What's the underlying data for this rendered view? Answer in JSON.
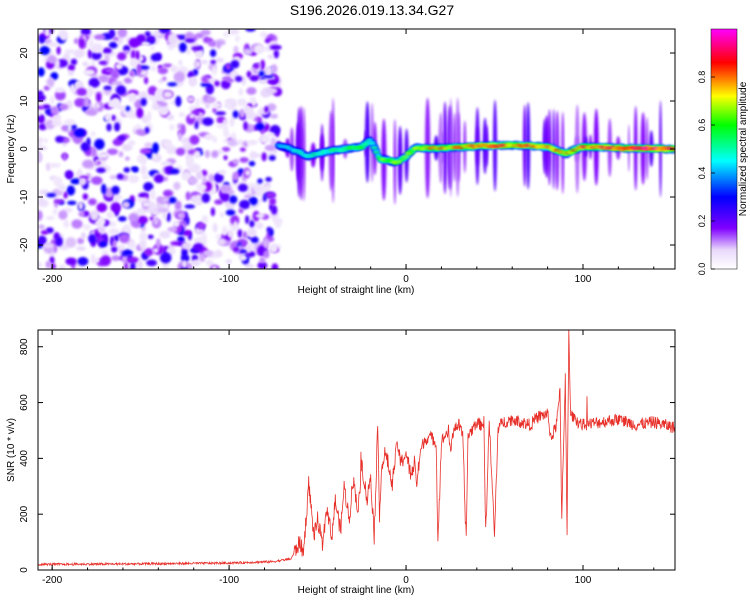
{
  "title": "S196.2026.019.13.34.G27",
  "chart_data": [
    {
      "type": "heatmap",
      "title": "",
      "xlabel": "Height of straight line (km)",
      "ylabel": "Frequency (Hz)",
      "xlim": [
        -208,
        152
      ],
      "ylim": [
        -25,
        25
      ],
      "xticks": [
        -200,
        -100,
        0,
        100
      ],
      "yticks": [
        -20,
        -10,
        0,
        10,
        20
      ],
      "colorbar": {
        "label": "Normalized spectral amplitude",
        "range": [
          0,
          1
        ],
        "ticks": [
          0.0,
          0.2,
          0.4,
          0.6,
          0.8
        ],
        "colors": [
          "#ffffff",
          "#e8d8fb",
          "#8000ff",
          "#0000ff",
          "#00ffff",
          "#00ff00",
          "#ffff00",
          "#ff0000",
          "#ff00ff"
        ]
      },
      "noise_region": {
        "x_range": [
          -208,
          -72
        ],
        "freq_range": [
          -25,
          25
        ],
        "amplitude": [
          0.05,
          0.3
        ]
      },
      "ridge": [
        {
          "x": -72,
          "freq": 0.8,
          "amp": 0.3
        },
        {
          "x": -65,
          "freq": 0.0,
          "amp": 0.35
        },
        {
          "x": -55,
          "freq": -1.5,
          "amp": 0.4
        },
        {
          "x": -45,
          "freq": -0.5,
          "amp": 0.45
        },
        {
          "x": -35,
          "freq": 0.0,
          "amp": 0.5
        },
        {
          "x": -25,
          "freq": 0.5,
          "amp": 0.55
        },
        {
          "x": -20,
          "freq": 2.0,
          "amp": 0.45
        },
        {
          "x": -15,
          "freq": -2.0,
          "amp": 0.6
        },
        {
          "x": -5,
          "freq": -2.8,
          "amp": 0.65
        },
        {
          "x": 0,
          "freq": -1.5,
          "amp": 0.6
        },
        {
          "x": 5,
          "freq": 0.2,
          "amp": 0.7
        },
        {
          "x": 20,
          "freq": 0.2,
          "amp": 0.75
        },
        {
          "x": 40,
          "freq": 0.6,
          "amp": 0.8
        },
        {
          "x": 60,
          "freq": 0.8,
          "amp": 0.85
        },
        {
          "x": 80,
          "freq": 0.5,
          "amp": 0.8
        },
        {
          "x": 90,
          "freq": -1.0,
          "amp": 0.75
        },
        {
          "x": 100,
          "freq": 0.5,
          "amp": 0.85
        },
        {
          "x": 120,
          "freq": 0.2,
          "amp": 0.9
        },
        {
          "x": 152,
          "freq": 0.0,
          "amp": 0.95
        }
      ]
    },
    {
      "type": "line",
      "title": "",
      "xlabel": "Height of straight line (km)",
      "ylabel": "SNR (10 * v/v)",
      "xlim": [
        -208,
        152
      ],
      "ylim": [
        0,
        860
      ],
      "xticks": [
        -200,
        -100,
        0,
        100
      ],
      "yticks": [
        0,
        200,
        400,
        600,
        800
      ],
      "color": "#e8302a",
      "series": [
        {
          "name": "SNR",
          "x": [
            -208,
            -150,
            -100,
            -75,
            -65,
            -60,
            -58,
            -55,
            -52,
            -50,
            -47,
            -45,
            -42,
            -40,
            -37,
            -35,
            -32,
            -30,
            -27,
            -25,
            -22,
            -20,
            -18,
            -16,
            -15,
            -14,
            -12,
            -10,
            -8,
            -5,
            -3,
            0,
            3,
            5,
            6,
            8,
            10,
            13,
            15,
            17,
            18,
            20,
            22,
            24,
            25,
            27,
            30,
            32,
            34,
            35,
            37,
            40,
            42,
            44,
            45,
            47,
            50,
            52,
            55,
            60,
            65,
            70,
            75,
            80,
            82,
            85,
            87,
            88,
            90,
            91,
            92,
            93,
            95,
            100,
            110,
            120,
            130,
            140,
            152
          ],
          "y": [
            20,
            22,
            25,
            30,
            40,
            100,
            60,
            310,
            120,
            180,
            80,
            230,
            120,
            250,
            140,
            300,
            180,
            330,
            210,
            380,
            250,
            340,
            120,
            520,
            200,
            350,
            420,
            380,
            300,
            460,
            380,
            420,
            330,
            400,
            300,
            420,
            460,
            480,
            470,
            460,
            100,
            460,
            480,
            500,
            420,
            510,
            520,
            480,
            100,
            480,
            500,
            530,
            520,
            530,
            130,
            530,
            120,
            510,
            530,
            540,
            530,
            520,
            550,
            560,
            470,
            520,
            640,
            190,
            700,
            140,
            850,
            560,
            540,
            520,
            530,
            540,
            520,
            530,
            510
          ]
        }
      ]
    }
  ]
}
